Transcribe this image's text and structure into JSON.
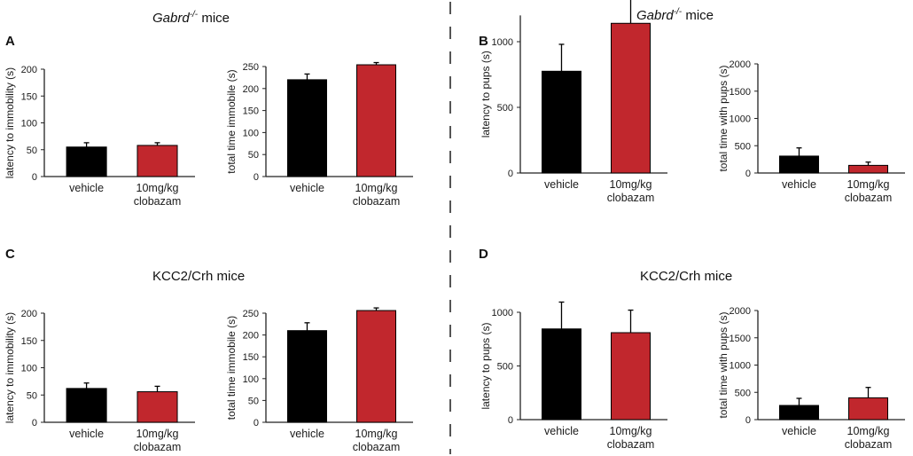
{
  "colors": {
    "vehicle": "#000000",
    "clobazam": "#c1272d",
    "axis": "#222222",
    "divider": "#555555"
  },
  "sections": [
    {
      "letter": "A",
      "title_main": "Gabrd",
      "title_sup": "-/-",
      "title_rest": " mice",
      "italic": true
    },
    {
      "letter": "B",
      "title_main": "Gabrd",
      "title_sup": "-/-",
      "title_rest": " mice",
      "italic": true
    },
    {
      "letter": "C",
      "title_main": "KCC2/Crh mice",
      "title_sup": "",
      "title_rest": "",
      "italic": false
    },
    {
      "letter": "D",
      "title_main": "KCC2/Crh mice",
      "title_sup": "",
      "title_rest": "",
      "italic": false
    }
  ],
  "chart_data": [
    {
      "type": "bar",
      "panel": "A",
      "ylabel": "latency to immobility (s)",
      "ylim": [
        0,
        200
      ],
      "yticks": [
        0,
        50,
        100,
        150,
        200
      ],
      "categories": [
        "vehicle",
        "10mg/kg clobazam"
      ],
      "category_lines": [
        [
          "vehicle"
        ],
        [
          "10mg/kg",
          "clobazam"
        ]
      ],
      "values": [
        55,
        58
      ],
      "errors": [
        8,
        5
      ]
    },
    {
      "type": "bar",
      "panel": "A",
      "ylabel": "total time immobile (s)",
      "ylim": [
        0,
        250
      ],
      "yticks": [
        0,
        50,
        100,
        150,
        200,
        250
      ],
      "categories": [
        "vehicle",
        "10mg/kg clobazam"
      ],
      "category_lines": [
        [
          "vehicle"
        ],
        [
          "10mg/kg",
          "clobazam"
        ]
      ],
      "values": [
        220,
        254
      ],
      "errors": [
        13,
        5
      ]
    },
    {
      "type": "bar",
      "panel": "B",
      "ylabel": "latency to pups (s)",
      "ylim": [
        0,
        1200
      ],
      "yticks": [
        0,
        500,
        1000
      ],
      "categories": [
        "vehicle",
        "10mg/kg clobazam"
      ],
      "category_lines": [
        [
          "vehicle"
        ],
        [
          "10mg/kg",
          "clobazam"
        ]
      ],
      "values": [
        775,
        1140
      ],
      "errors": [
        205,
        275
      ]
    },
    {
      "type": "bar",
      "panel": "B",
      "ylabel": "total time with pups (s)",
      "ylim": [
        0,
        2000
      ],
      "yticks": [
        0,
        500,
        1000,
        1500,
        2000
      ],
      "categories": [
        "vehicle",
        "10mg/kg clobazam"
      ],
      "category_lines": [
        [
          "vehicle"
        ],
        [
          "10mg/kg",
          "clobazam"
        ]
      ],
      "values": [
        310,
        140
      ],
      "errors": [
        150,
        60
      ]
    },
    {
      "type": "bar",
      "panel": "C",
      "ylabel": "latency to immobility (s)",
      "ylim": [
        0,
        200
      ],
      "yticks": [
        0,
        50,
        100,
        150,
        200
      ],
      "categories": [
        "vehicle",
        "10mg/kg clobazam"
      ],
      "category_lines": [
        [
          "vehicle"
        ],
        [
          "10mg/kg",
          "clobazam"
        ]
      ],
      "values": [
        62,
        56
      ],
      "errors": [
        10,
        10
      ]
    },
    {
      "type": "bar",
      "panel": "C",
      "ylabel": "total time immobile (s)",
      "ylim": [
        0,
        250
      ],
      "yticks": [
        0,
        50,
        100,
        150,
        200,
        250
      ],
      "categories": [
        "vehicle",
        "10mg/kg clobazam"
      ],
      "category_lines": [
        [
          "vehicle"
        ],
        [
          "10mg/kg",
          "clobazam"
        ]
      ],
      "values": [
        210,
        256
      ],
      "errors": [
        18,
        6
      ]
    },
    {
      "type": "bar",
      "panel": "D",
      "ylabel": "latency to pups (s)",
      "ylim": [
        0,
        1000
      ],
      "yticks": [
        0,
        500,
        1000
      ],
      "categories": [
        "vehicle",
        "10mg/kg clobazam"
      ],
      "category_lines": [
        [
          "vehicle"
        ],
        [
          "10mg/kg",
          "clobazam"
        ]
      ],
      "values": [
        845,
        810
      ],
      "errors": [
        250,
        210
      ]
    },
    {
      "type": "bar",
      "panel": "D",
      "ylabel": "total time with pups (s)",
      "ylim": [
        0,
        2000
      ],
      "yticks": [
        0,
        500,
        1000,
        1500,
        2000
      ],
      "categories": [
        "vehicle",
        "10mg/kg clobazam"
      ],
      "category_lines": [
        [
          "vehicle"
        ],
        [
          "10mg/kg",
          "clobazam"
        ]
      ],
      "values": [
        260,
        400
      ],
      "errors": [
        130,
        190
      ]
    }
  ]
}
